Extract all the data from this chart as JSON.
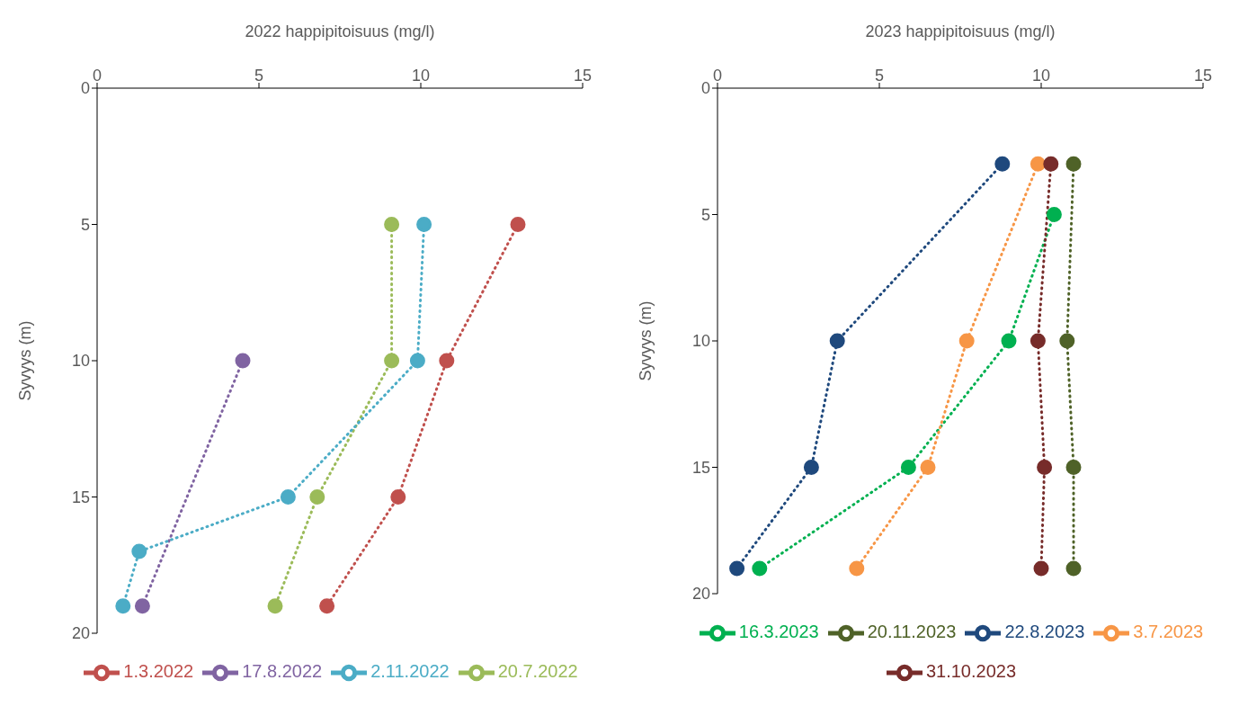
{
  "chart_data": [
    {
      "type": "line",
      "xlabel": "2022 happipitoisuus (mg/l)",
      "ylabel": "Syvyys (m)",
      "xlim": [
        0,
        15
      ],
      "xticks": [
        0,
        5,
        10,
        15
      ],
      "ylim": [
        20,
        0
      ],
      "yticks": [
        0,
        5,
        10,
        15,
        20
      ],
      "grid": false,
      "legend": "bottom",
      "marker": "circle",
      "line_style": "dotted",
      "series": [
        {
          "name": "1.3.2022",
          "color": "#c0504d",
          "x": [
            13.0,
            10.8,
            9.3,
            7.1
          ],
          "values": [
            5,
            10,
            15,
            19
          ]
        },
        {
          "name": "20.7.2022",
          "color": "#9bbb59",
          "x": [
            9.1,
            9.1,
            6.8,
            5.5
          ],
          "values": [
            5,
            10,
            15,
            19
          ]
        },
        {
          "name": "17.8.2022",
          "color": "#8064a2",
          "x": [
            4.5,
            1.4
          ],
          "values": [
            10,
            19
          ]
        },
        {
          "name": "2.11.2022",
          "color": "#4bacc6",
          "x": [
            10.1,
            9.9,
            5.9,
            1.3,
            0.8
          ],
          "values": [
            5,
            10,
            15,
            17,
            19
          ]
        }
      ]
    },
    {
      "type": "line",
      "xlabel": "2023 happipitoisuus (mg/l)",
      "ylabel": "Syvyys (m)",
      "xlim": [
        0,
        15
      ],
      "xticks": [
        0,
        5,
        10,
        15
      ],
      "ylim": [
        20,
        0
      ],
      "yticks": [
        0,
        5,
        10,
        15,
        20
      ],
      "grid": false,
      "legend": "bottom",
      "marker": "circle",
      "line_style": "dotted",
      "series": [
        {
          "name": "16.3.2023",
          "color": "#00b050",
          "x": [
            10.4,
            9.0,
            5.9,
            1.3
          ],
          "values": [
            5,
            10,
            15,
            19
          ]
        },
        {
          "name": "3.7.2023",
          "color": "#f79646",
          "x": [
            9.9,
            7.7,
            6.5,
            4.3
          ],
          "values": [
            3,
            10,
            15,
            19
          ]
        },
        {
          "name": "22.8.2023",
          "color": "#1f497d",
          "x": [
            8.8,
            3.7,
            2.9,
            0.6
          ],
          "values": [
            3,
            10,
            15,
            19
          ]
        },
        {
          "name": "31.10.2023",
          "color": "#772c2a",
          "x": [
            10.3,
            9.9,
            10.1,
            10.0
          ],
          "values": [
            3,
            10,
            15,
            19
          ]
        },
        {
          "name": "20.11.2023",
          "color": "#4f6228",
          "x": [
            11.0,
            10.8,
            11.0,
            11.0
          ],
          "values": [
            3,
            10,
            15,
            19
          ]
        }
      ]
    }
  ]
}
